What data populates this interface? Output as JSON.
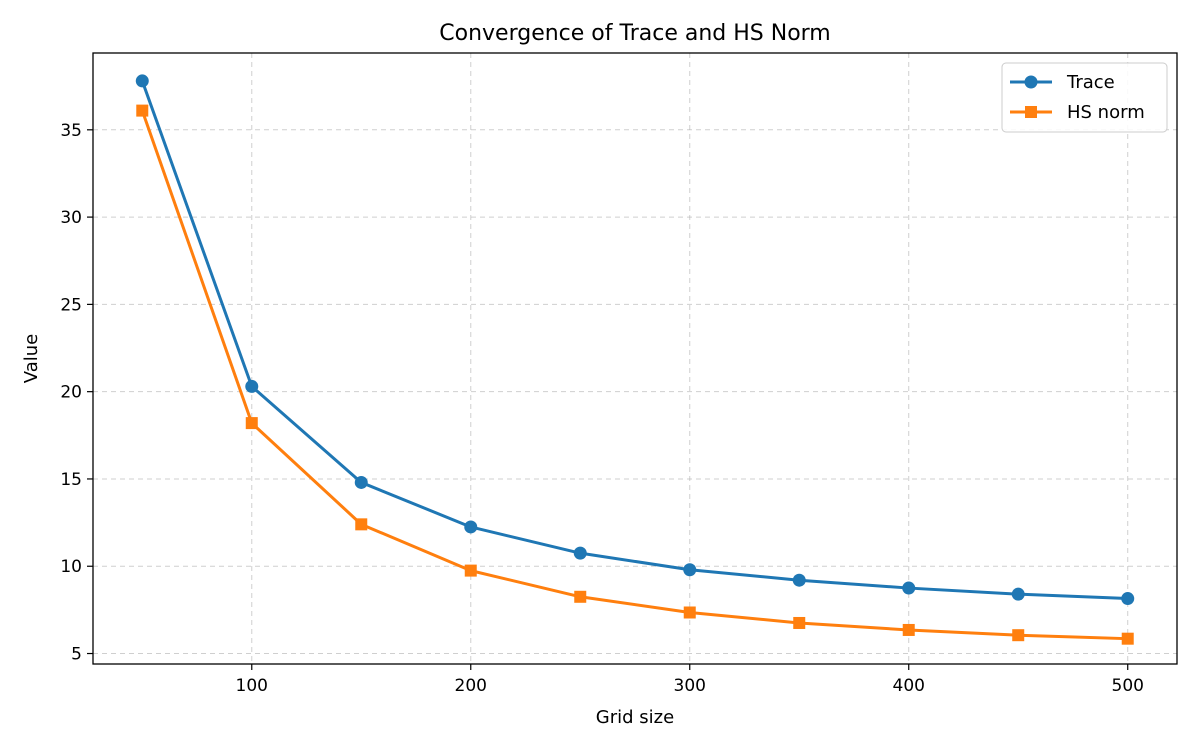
{
  "chart_data": {
    "type": "line",
    "title": "Convergence of Trace and HS Norm",
    "xlabel": "Grid size",
    "ylabel": "Value",
    "x": [
      50,
      100,
      150,
      200,
      250,
      300,
      350,
      400,
      450,
      500
    ],
    "xlim": [
      27.5,
      522.5
    ],
    "ylim": [
      4.4,
      39.4
    ],
    "xticks": [
      100,
      200,
      300,
      400,
      500
    ],
    "yticks": [
      5,
      10,
      15,
      20,
      25,
      30,
      35
    ],
    "grid": true,
    "legend_position": "top-right",
    "series": [
      {
        "name": "Trace",
        "color": "#1f77b4",
        "marker": "circle",
        "values": [
          37.8,
          20.3,
          14.8,
          12.25,
          10.75,
          9.8,
          9.2,
          8.75,
          8.4,
          8.15
        ]
      },
      {
        "name": "HS norm",
        "color": "#ff7f0e",
        "marker": "square",
        "values": [
          36.1,
          18.2,
          12.4,
          9.75,
          8.25,
          7.35,
          6.75,
          6.35,
          6.05,
          5.85
        ]
      }
    ]
  }
}
